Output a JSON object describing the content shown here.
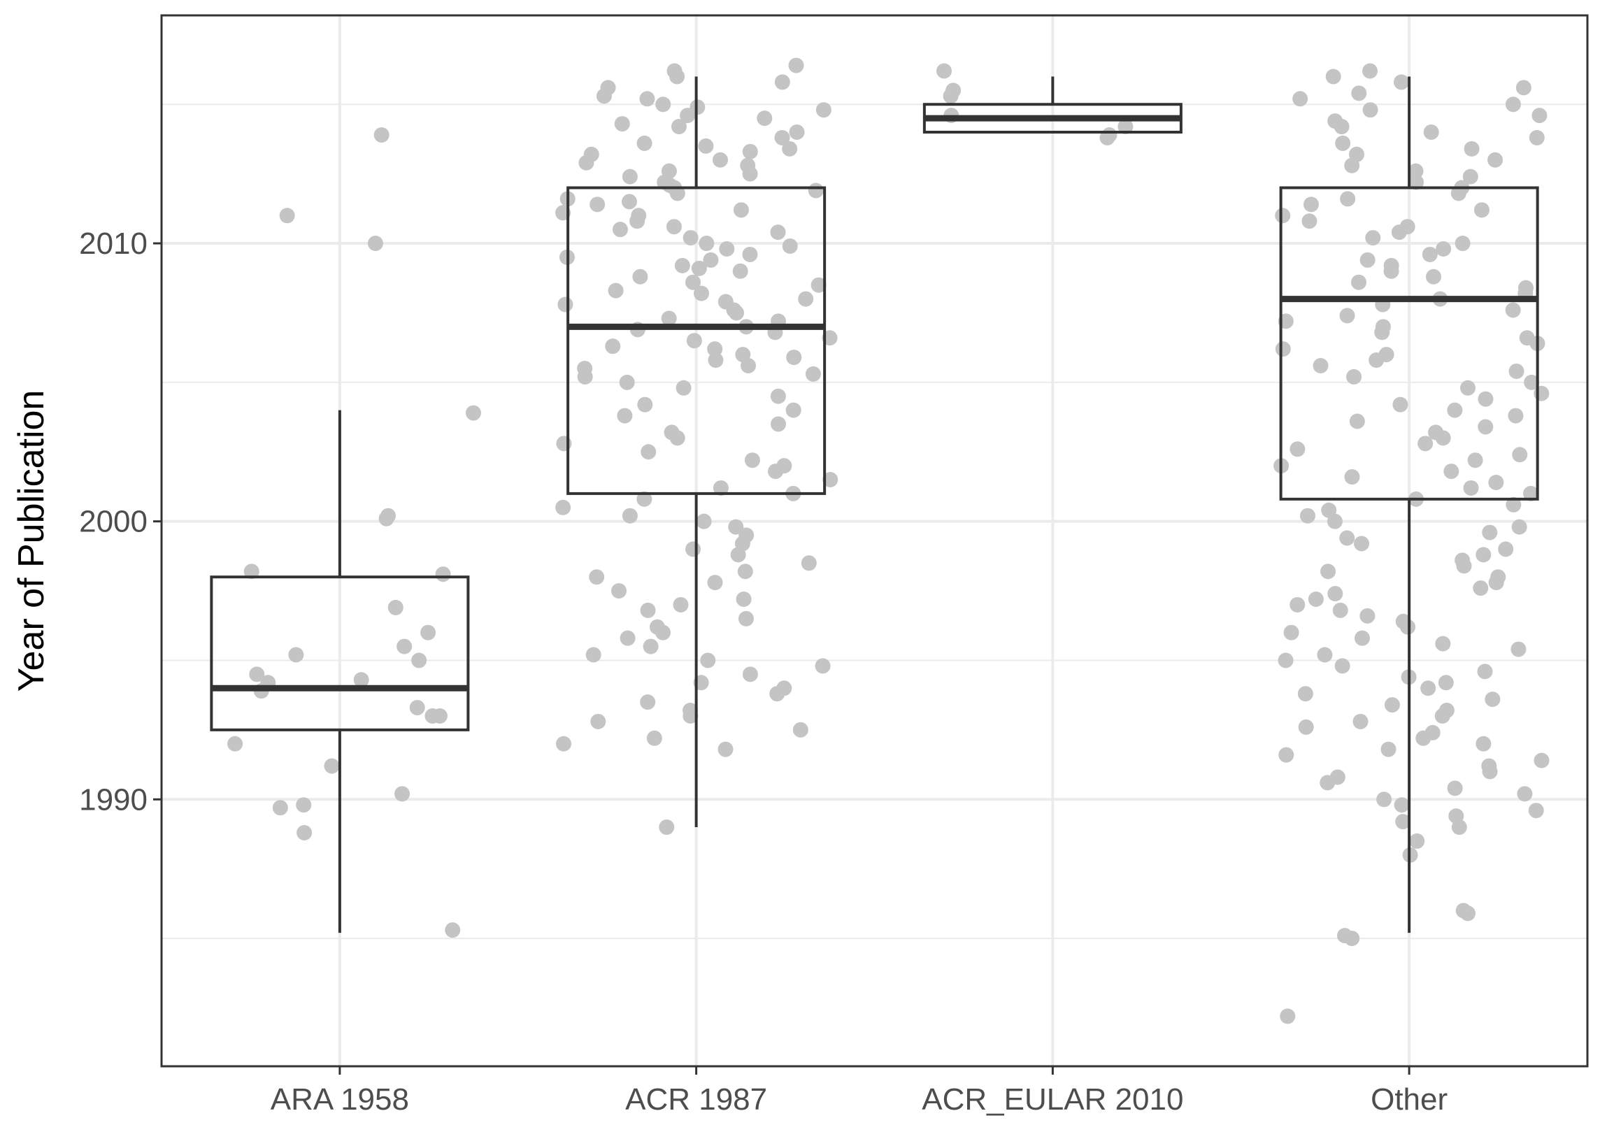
{
  "chart_data": {
    "type": "boxplot",
    "title": "",
    "xlabel": "",
    "ylabel": "Year of Publication",
    "ylim": [
      1980.4,
      2018.2
    ],
    "y_ticks": [
      1990,
      2000,
      2010
    ],
    "grid": true,
    "colors": {
      "points": "#c4c4c4",
      "box": "#333333",
      "grid": "#ebebeb",
      "panel_border": "#333333"
    },
    "categories": [
      "ARA 1958",
      "ACR 1987",
      "ACR_EULAR 2010",
      "Other"
    ],
    "boxes": [
      {
        "name": "ARA 1958",
        "lower_whisker": 1985.2,
        "q1": 1992.5,
        "median": 1994.0,
        "q3": 1998.0,
        "upper_whisker": 2004.0
      },
      {
        "name": "ACR 1987",
        "lower_whisker": 1989.0,
        "q1": 2001.0,
        "median": 2007.0,
        "q3": 2012.0,
        "upper_whisker": 2016.0
      },
      {
        "name": "ACR_EULAR 2010",
        "lower_whisker": 2014.0,
        "q1": 2014.0,
        "median": 2014.5,
        "q3": 2015.0,
        "upper_whisker": 2016.0
      },
      {
        "name": "Other",
        "lower_whisker": 1985.2,
        "q1": 2000.8,
        "median": 2008.0,
        "q3": 2012.0,
        "upper_whisker": 2016.0
      }
    ],
    "points": [
      {
        "name": "ARA 1958",
        "values": [
          2013.9,
          2011.0,
          2010.0,
          2003.9,
          2000.2,
          2000.1,
          1998.2,
          1998.1,
          1996.9,
          1996.0,
          1995.5,
          1995.2,
          1995.0,
          1994.5,
          1994.3,
          1994.2,
          1993.9,
          1993.3,
          1993.0,
          1993.0,
          1992.0,
          1991.2,
          1990.2,
          1989.8,
          1989.7,
          1988.8,
          1985.3
        ]
      },
      {
        "name": "ACR 1987",
        "values": [
          2016.4,
          2016.2,
          2016.0,
          2015.8,
          2015.6,
          2015.3,
          2015.2,
          2015.0,
          2014.9,
          2014.8,
          2014.6,
          2014.5,
          2014.3,
          2014.2,
          2014.0,
          2013.8,
          2013.6,
          2013.5,
          2013.4,
          2013.3,
          2013.2,
          2013.0,
          2012.9,
          2012.8,
          2012.6,
          2012.5,
          2012.4,
          2012.2,
          2012.1,
          2012.0,
          2011.9,
          2011.8,
          2011.6,
          2011.5,
          2011.4,
          2011.2,
          2011.1,
          2011.0,
          2010.8,
          2010.6,
          2010.5,
          2010.4,
          2010.2,
          2010.0,
          2009.9,
          2009.8,
          2009.6,
          2009.5,
          2009.4,
          2009.2,
          2009.1,
          2009.0,
          2008.8,
          2008.6,
          2008.5,
          2008.3,
          2008.2,
          2008.0,
          2007.9,
          2007.8,
          2007.6,
          2007.5,
          2007.3,
          2007.2,
          2007.0,
          2006.9,
          2006.8,
          2006.6,
          2006.5,
          2006.3,
          2006.2,
          2006.0,
          2005.9,
          2005.8,
          2005.6,
          2005.5,
          2005.3,
          2005.2,
          2005.0,
          2004.8,
          2004.5,
          2004.2,
          2004.0,
          2003.8,
          2003.5,
          2003.2,
          2003.0,
          2002.8,
          2002.5,
          2002.2,
          2002.0,
          2001.8,
          2001.5,
          2001.2,
          2001.0,
          2000.8,
          2000.5,
          2000.2,
          2000.0,
          1999.8,
          1999.5,
          1999.2,
          1999.0,
          1998.8,
          1998.5,
          1998.2,
          1998.0,
          1997.8,
          1997.5,
          1997.2,
          1997.0,
          1996.8,
          1996.5,
          1996.2,
          1996.0,
          1995.8,
          1995.5,
          1995.2,
          1995.0,
          1994.8,
          1994.5,
          1994.2,
          1994.0,
          1993.8,
          1993.5,
          1993.2,
          1993.0,
          1992.8,
          1992.5,
          1992.2,
          1992.0,
          1991.8,
          1989.0
        ]
      },
      {
        "name": "ACR_EULAR 2010",
        "values": [
          2016.2,
          2015.5,
          2015.3,
          2014.6,
          2014.2,
          2013.9,
          2013.8
        ]
      },
      {
        "name": "Other",
        "values": [
          2016.2,
          2016.0,
          2015.8,
          2015.6,
          2015.4,
          2015.2,
          2015.0,
          2014.8,
          2014.6,
          2014.4,
          2014.2,
          2014.0,
          2013.8,
          2013.6,
          2013.4,
          2013.2,
          2013.0,
          2012.8,
          2012.6,
          2012.4,
          2012.2,
          2012.0,
          2011.8,
          2011.6,
          2011.4,
          2011.2,
          2011.0,
          2010.8,
          2010.6,
          2010.4,
          2010.2,
          2010.0,
          2009.8,
          2009.6,
          2009.4,
          2009.2,
          2009.0,
          2008.8,
          2008.6,
          2008.4,
          2008.2,
          2008.0,
          2007.8,
          2007.6,
          2007.4,
          2007.2,
          2007.0,
          2006.8,
          2006.6,
          2006.4,
          2006.2,
          2006.0,
          2005.8,
          2005.6,
          2005.4,
          2005.2,
          2005.0,
          2004.8,
          2004.6,
          2004.4,
          2004.2,
          2004.0,
          2003.8,
          2003.6,
          2003.4,
          2003.2,
          2003.0,
          2002.8,
          2002.6,
          2002.4,
          2002.2,
          2002.0,
          2001.8,
          2001.6,
          2001.4,
          2001.2,
          2001.0,
          2000.8,
          2000.6,
          2000.4,
          2000.2,
          2000.0,
          1999.8,
          1999.6,
          1999.4,
          1999.2,
          1999.0,
          1998.8,
          1998.6,
          1998.4,
          1998.2,
          1998.0,
          1997.8,
          1997.6,
          1997.4,
          1997.2,
          1997.0,
          1996.8,
          1996.6,
          1996.4,
          1996.2,
          1996.0,
          1995.8,
          1995.6,
          1995.4,
          1995.2,
          1995.0,
          1994.8,
          1994.6,
          1994.4,
          1994.2,
          1994.0,
          1993.8,
          1993.6,
          1993.4,
          1993.2,
          1993.0,
          1992.8,
          1992.6,
          1992.4,
          1992.2,
          1992.0,
          1991.8,
          1991.6,
          1991.4,
          1991.2,
          1991.0,
          1990.8,
          1990.6,
          1990.4,
          1990.2,
          1990.0,
          1989.8,
          1989.6,
          1989.4,
          1989.2,
          1989.0,
          1988.5,
          1988.0,
          1986.0,
          1985.9,
          1985.0,
          1985.1,
          1982.2
        ]
      }
    ]
  }
}
